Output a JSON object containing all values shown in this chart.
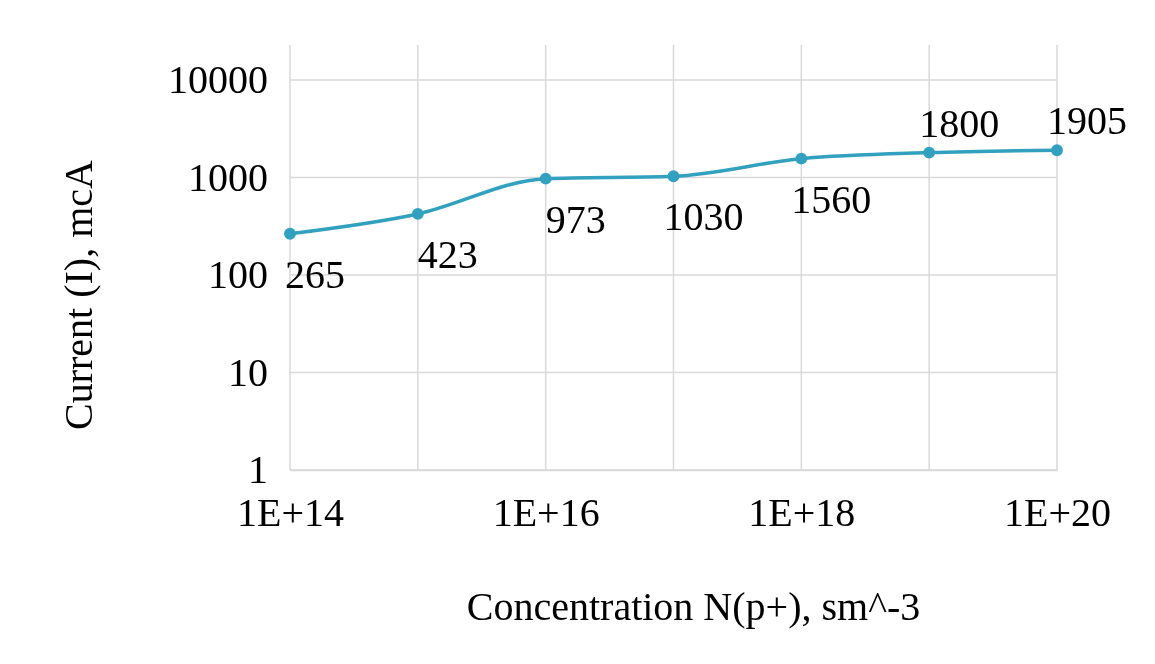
{
  "chart_data": {
    "type": "line",
    "xlabel": "Concentration N(p+), sm^-3",
    "ylabel": "Current (I), mcA",
    "x": [
      100000000000000.0,
      1000000000000000.0,
      1e+16,
      1e+17,
      1e+18,
      1e+19,
      1e+20
    ],
    "series": [
      {
        "color": "#31a1bf",
        "values": [
          265,
          423,
          973,
          1030,
          1560,
          1800,
          1905
        ]
      }
    ],
    "log": "xy",
    "xlim": [
      100000000000000.0,
      1e+20
    ],
    "xticks": [
      {
        "value": 100000000000000.0,
        "label": "1E+14"
      },
      {
        "value": 1000000000000000.0,
        "label": null
      },
      {
        "value": 1e+16,
        "label": "1E+16"
      },
      {
        "value": 1e+17,
        "label": null
      },
      {
        "value": 1e+18,
        "label": "1E+18"
      },
      {
        "value": 1e+19,
        "label": null
      },
      {
        "value": 1e+20,
        "label": "1E+20"
      }
    ],
    "ylim": [
      1,
      10000
    ],
    "yticks": [
      1,
      10,
      100,
      1000,
      10000
    ],
    "grid": true,
    "marker": "circle",
    "line_style": "solid",
    "data_labels": true
  }
}
